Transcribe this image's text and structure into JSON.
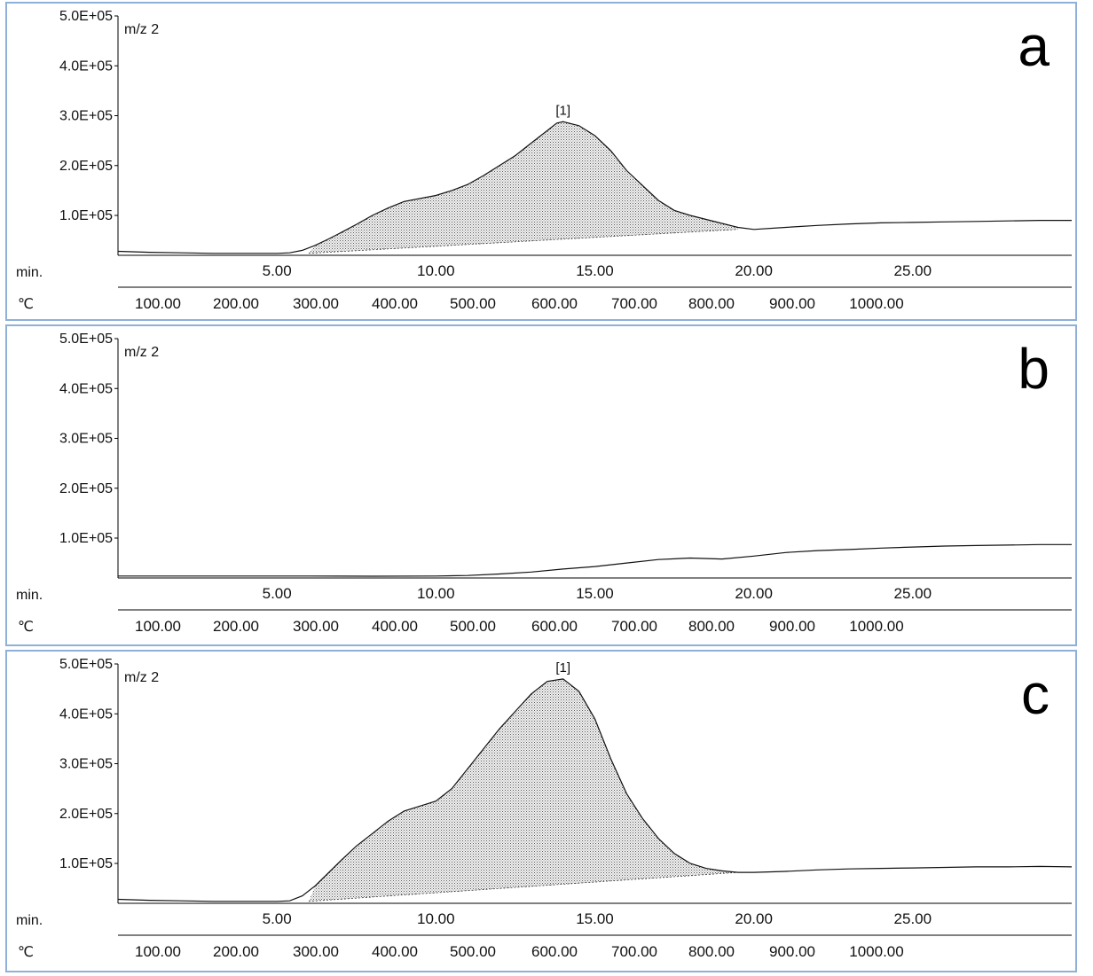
{
  "chart_data": [
    {
      "type": "area",
      "panel_label": "a",
      "trace_label": "m/z 2",
      "peak_label": "[1]",
      "ylabels": [
        "5.0E+05",
        "4.0E+05",
        "3.0E+05",
        "2.0E+05",
        "1.0E+05"
      ],
      "ylim": [
        20000,
        500000
      ],
      "x_axis_name": "min.",
      "x_ticks": [
        "5.00",
        "10.00",
        "15.00",
        "20.00",
        "25.00"
      ],
      "temp_axis_name": "℃",
      "temp_ticks": [
        "100.00",
        "200.00",
        "300.00",
        "400.00",
        "500.00",
        "600.00",
        "700.00",
        "800.00",
        "900.00",
        "1000.00"
      ],
      "xlim": [
        0,
        30
      ],
      "x": [
        0,
        1,
        2,
        3,
        4,
        5,
        5.4,
        5.8,
        6.2,
        6.6,
        7,
        7.5,
        8,
        8.5,
        9,
        10,
        10.5,
        11,
        11.5,
        12,
        12.5,
        13,
        13.5,
        13.8,
        14,
        14.5,
        15,
        15.5,
        16,
        16.5,
        17,
        17.5,
        18,
        18.5,
        19,
        19.5,
        20,
        21,
        22,
        23,
        24,
        25,
        26,
        27,
        28,
        29,
        30
      ],
      "y": [
        28000,
        26000,
        25000,
        24000,
        24000,
        24000,
        25000,
        30000,
        40000,
        52000,
        65000,
        82000,
        100000,
        115000,
        128000,
        140000,
        150000,
        162000,
        180000,
        200000,
        220000,
        245000,
        270000,
        285000,
        288000,
        280000,
        260000,
        230000,
        190000,
        160000,
        130000,
        110000,
        100000,
        92000,
        84000,
        76000,
        72000,
        76000,
        80000,
        83000,
        85000,
        86000,
        87000,
        88000,
        89000,
        90000,
        90000
      ],
      "shaded_range": [
        6.0,
        19.5
      ],
      "baseline": [
        [
          6.0,
          24000
        ],
        [
          19.5,
          72000
        ]
      ]
    },
    {
      "type": "line",
      "panel_label": "b",
      "trace_label": "m/z 2",
      "ylabels": [
        "5.0E+05",
        "4.0E+05",
        "3.0E+05",
        "2.0E+05",
        "1.0E+05"
      ],
      "ylim": [
        20000,
        500000
      ],
      "x_axis_name": "min.",
      "x_ticks": [
        "5.00",
        "10.00",
        "15.00",
        "20.00",
        "25.00"
      ],
      "temp_axis_name": "℃",
      "temp_ticks": [
        "100.00",
        "200.00",
        "300.00",
        "400.00",
        "500.00",
        "600.00",
        "700.00",
        "800.00",
        "900.00",
        "1000.00"
      ],
      "xlim": [
        0,
        30
      ],
      "x": [
        0,
        2,
        4,
        6,
        8,
        10,
        11,
        12,
        13,
        14,
        15,
        16,
        17,
        18,
        19,
        20,
        21,
        22,
        23,
        24,
        25,
        26,
        27,
        28,
        29,
        30
      ],
      "y": [
        24000,
        24000,
        24000,
        24000,
        23500,
        24000,
        25000,
        28000,
        32000,
        38000,
        43000,
        50000,
        57000,
        60000,
        58000,
        64000,
        71000,
        75000,
        77000,
        80000,
        82000,
        84000,
        85000,
        86000,
        87000,
        87000
      ]
    },
    {
      "type": "area",
      "panel_label": "c",
      "trace_label": "m/z 2",
      "peak_label": "[1]",
      "ylabels": [
        "5.0E+05",
        "4.0E+05",
        "3.0E+05",
        "2.0E+05",
        "1.0E+05"
      ],
      "ylim": [
        20000,
        500000
      ],
      "x_axis_name": "min.",
      "x_ticks": [
        "5.00",
        "10.00",
        "15.00",
        "20.00",
        "25.00"
      ],
      "temp_axis_name": "℃",
      "temp_ticks": [
        "100.00",
        "200.00",
        "300.00",
        "400.00",
        "500.00",
        "600.00",
        "700.00",
        "800.00",
        "900.00",
        "1000.00"
      ],
      "xlim": [
        0,
        30
      ],
      "x": [
        0,
        1,
        2,
        3,
        4,
        5,
        5.4,
        5.8,
        6.2,
        6.6,
        7,
        7.5,
        8,
        8.5,
        9,
        9.5,
        10,
        10.5,
        11,
        11.5,
        12,
        12.5,
        13,
        13.5,
        14,
        14.5,
        15,
        15.5,
        16,
        16.5,
        17,
        17.5,
        18,
        18.5,
        19,
        19.5,
        20,
        21,
        22,
        23,
        24,
        25,
        26,
        27,
        28,
        29,
        30
      ],
      "y": [
        28000,
        26000,
        25000,
        24000,
        24000,
        24000,
        25000,
        35000,
        55000,
        80000,
        105000,
        135000,
        160000,
        185000,
        205000,
        215000,
        225000,
        250000,
        290000,
        330000,
        370000,
        405000,
        440000,
        465000,
        470000,
        445000,
        390000,
        310000,
        240000,
        190000,
        150000,
        120000,
        100000,
        90000,
        85000,
        82000,
        82000,
        84000,
        87000,
        89000,
        90000,
        91000,
        92000,
        93000,
        93000,
        94000,
        93000
      ],
      "shaded_range": [
        6.0,
        19.5
      ],
      "baseline": [
        [
          6.0,
          24000
        ],
        [
          19.5,
          82000
        ]
      ]
    }
  ]
}
